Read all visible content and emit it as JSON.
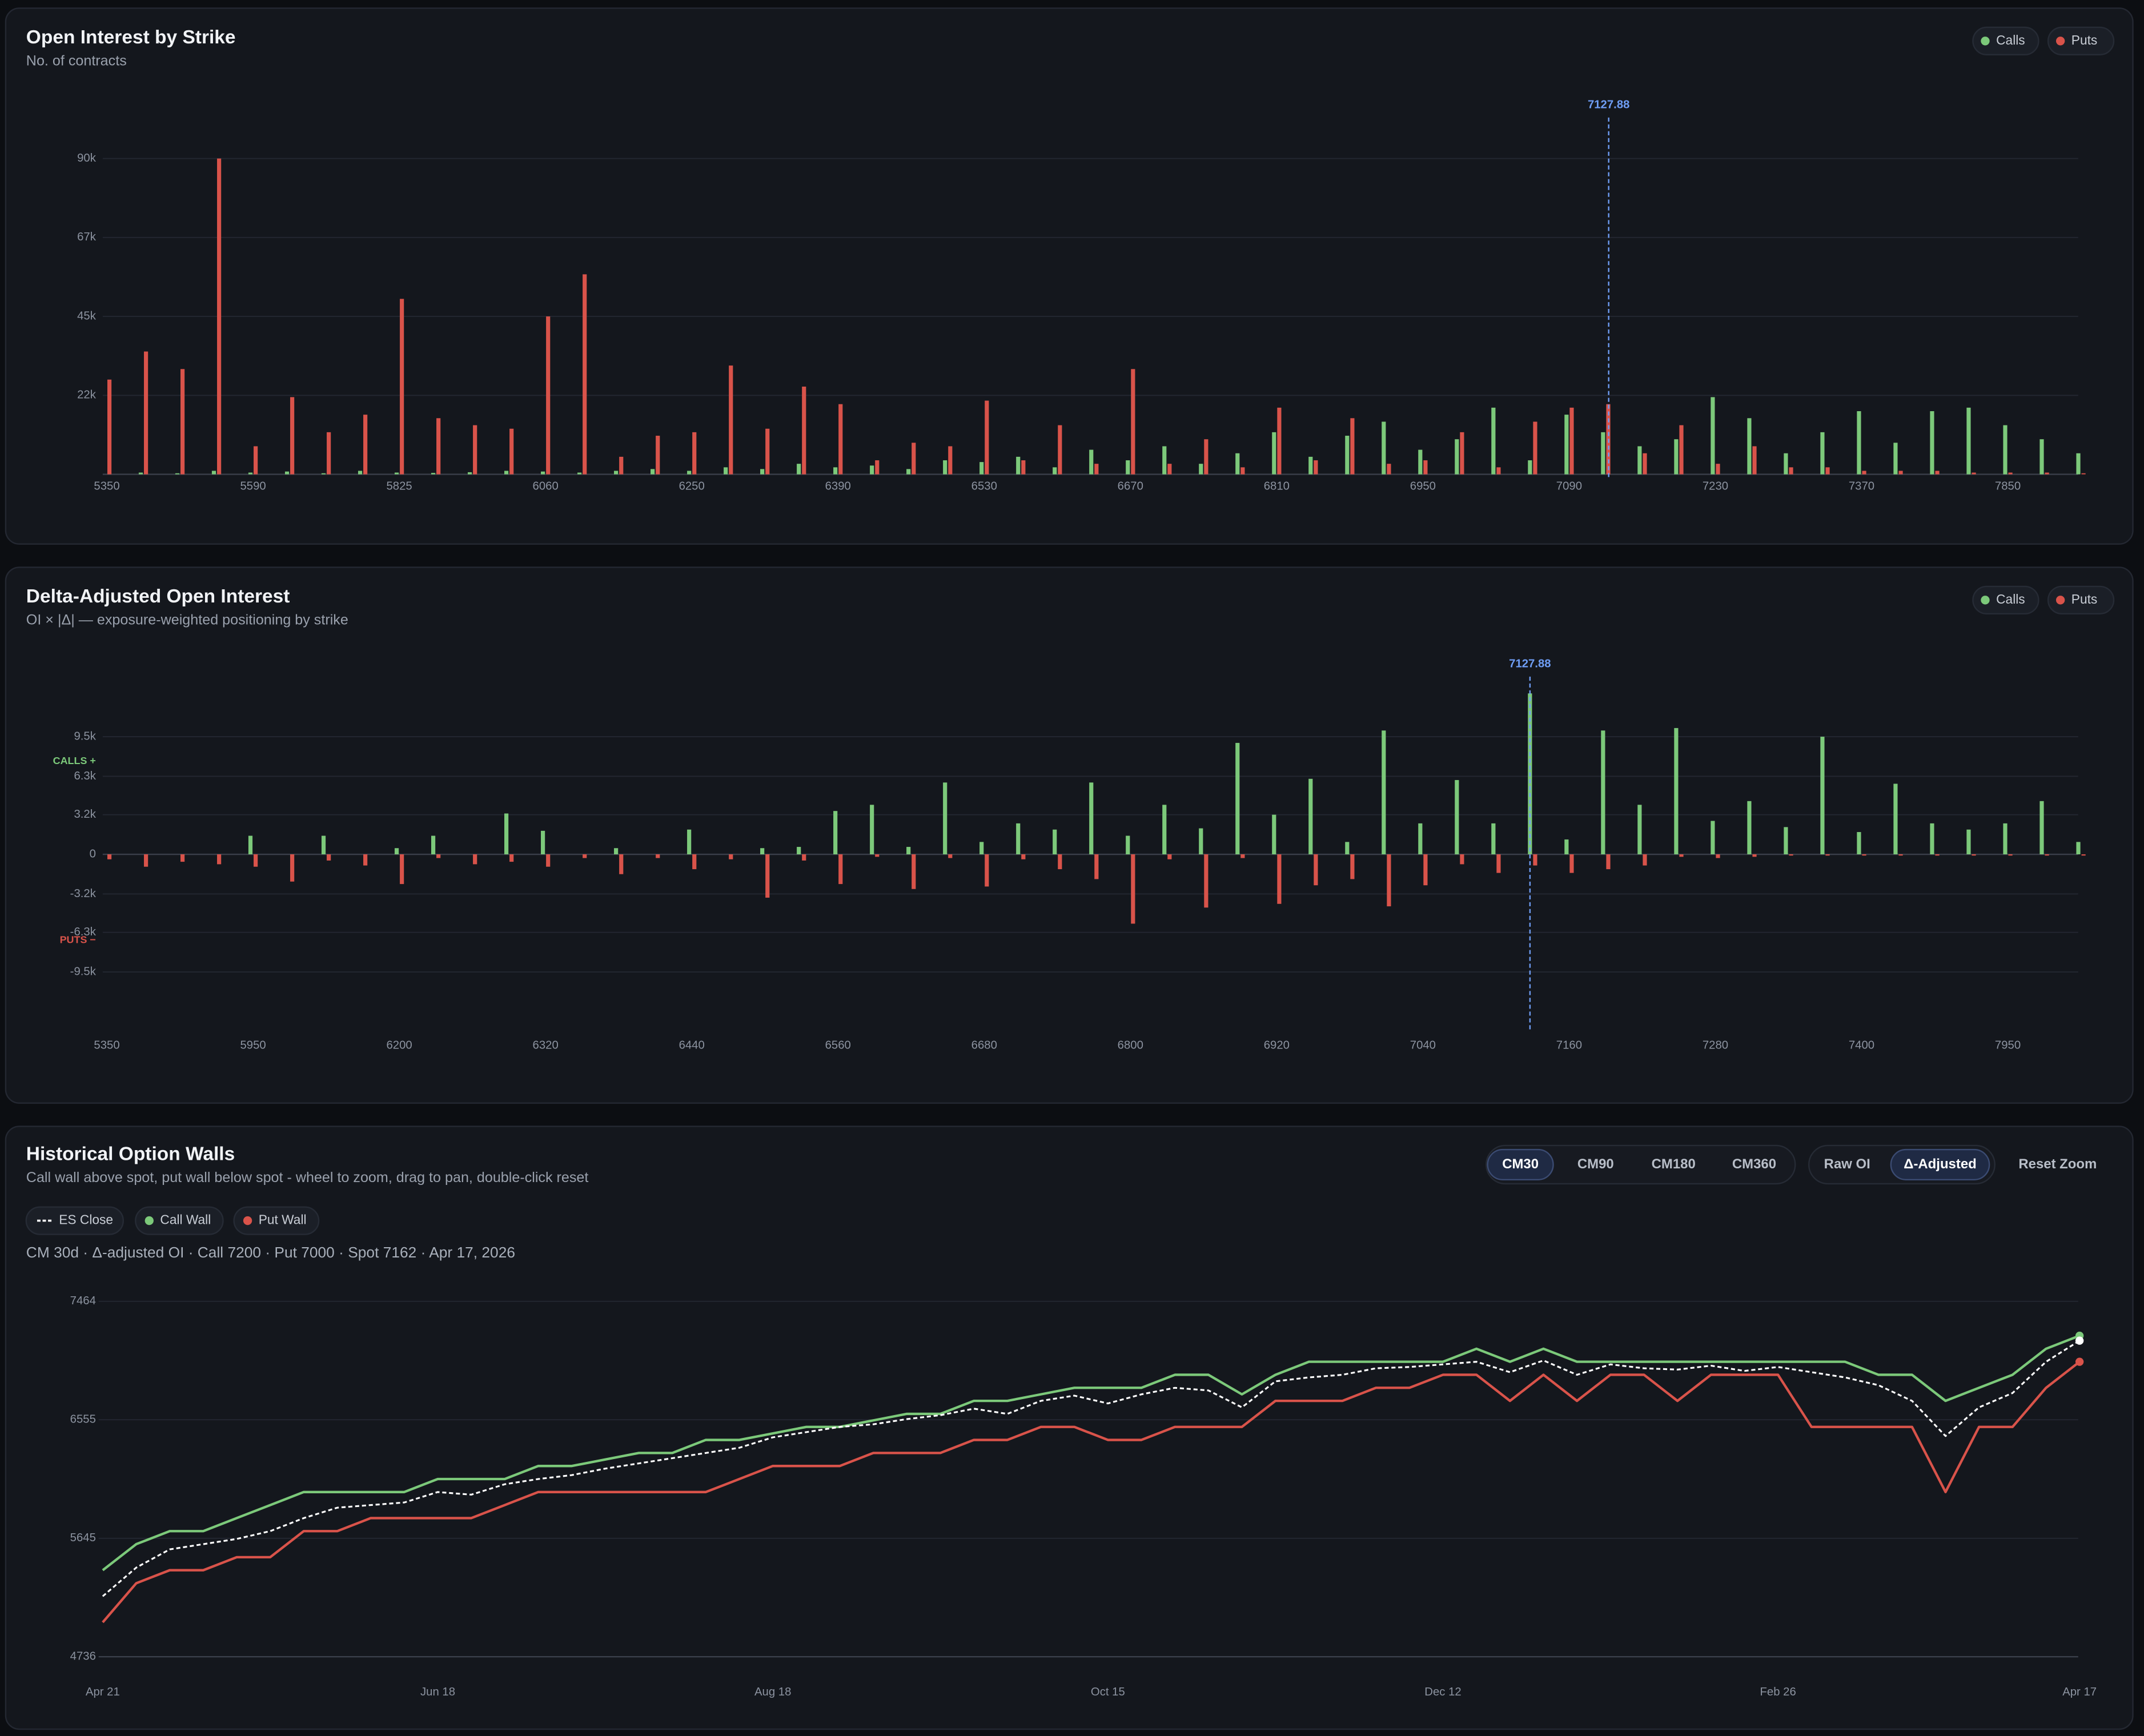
{
  "chart_data": [
    {
      "type": "bar",
      "title": "Open Interest by Strike",
      "subtitle": "No. of contracts",
      "categories": [
        5350,
        null,
        null,
        null,
        5590,
        null,
        null,
        null,
        5825,
        null,
        null,
        null,
        6060,
        null,
        null,
        null,
        6250,
        null,
        null,
        null,
        6390,
        null,
        null,
        null,
        6530,
        null,
        null,
        null,
        6670,
        null,
        null,
        null,
        6810,
        null,
        null,
        null,
        6950,
        null,
        null,
        null,
        7090,
        null,
        null,
        null,
        7230,
        null,
        null,
        null,
        7370,
        null,
        null,
        null,
        7850,
        null,
        null
      ],
      "series": [
        {
          "name": "Calls",
          "color": "#7cc97a",
          "values": [
            0,
            500,
            300,
            1000,
            500,
            800,
            300,
            1000,
            500,
            400,
            600,
            1000,
            800,
            500,
            1000,
            1500,
            1000,
            2000,
            1500,
            3000,
            2000,
            2500,
            1500,
            4000,
            3500,
            5000,
            2000,
            7000,
            4000,
            8000,
            3000,
            6000,
            12000,
            5000,
            11000,
            15000,
            7000,
            10000,
            19000,
            4000,
            17000,
            12000,
            8000,
            10000,
            22000,
            16000,
            6000,
            12000,
            18000,
            9000,
            18000,
            19000,
            14000,
            10000,
            6000
          ]
        },
        {
          "name": "Puts",
          "color": "#d9534a",
          "values": [
            27000,
            35000,
            30000,
            90000,
            8000,
            22000,
            12000,
            17000,
            50000,
            16000,
            14000,
            13000,
            45000,
            57000,
            5000,
            11000,
            12000,
            31000,
            13000,
            25000,
            20000,
            4000,
            9000,
            8000,
            21000,
            4000,
            14000,
            3000,
            30000,
            3000,
            10000,
            2000,
            19000,
            4000,
            16000,
            3000,
            4000,
            12000,
            2000,
            15000,
            19000,
            20000,
            6000,
            14000,
            3000,
            8000,
            2000,
            2000,
            1000,
            1000,
            1000,
            500,
            500,
            500,
            300
          ]
        }
      ],
      "ylim": [
        0,
        97000
      ],
      "yticks": [
        {
          "value": 22500,
          "label": "22k"
        },
        {
          "value": 45000,
          "label": "45k"
        },
        {
          "value": 67500,
          "label": "67k"
        },
        {
          "value": 90000,
          "label": "90k"
        }
      ],
      "spot": 7127.88,
      "spot_color": "#6f9ef5",
      "grid": true
    },
    {
      "type": "bar",
      "title": "Delta-Adjusted Open Interest",
      "subtitle": "OI × |Δ| — exposure-weighted positioning by strike",
      "categories": [
        5350,
        null,
        null,
        null,
        5950,
        null,
        null,
        null,
        6200,
        null,
        null,
        null,
        6320,
        null,
        null,
        null,
        6440,
        null,
        null,
        null,
        6560,
        null,
        null,
        null,
        6680,
        null,
        null,
        null,
        6800,
        null,
        null,
        null,
        6920,
        null,
        null,
        null,
        7040,
        null,
        null,
        null,
        7160,
        null,
        null,
        null,
        7280,
        null,
        null,
        null,
        7400,
        null,
        null,
        null,
        7950,
        null,
        null
      ],
      "series": [
        {
          "name": "Calls",
          "color": "#7cc97a",
          "values": [
            0,
            0,
            0,
            0,
            1500,
            0,
            1500,
            0,
            500,
            1500,
            0,
            3300,
            1900,
            0,
            500,
            0,
            2000,
            0,
            500,
            600,
            3500,
            4000,
            600,
            5800,
            1000,
            2500,
            2000,
            5800,
            1500,
            4000,
            2100,
            9000,
            3200,
            6100,
            1000,
            10000,
            2500,
            6000,
            2500,
            13000,
            1200,
            10000,
            4000,
            10200,
            2700,
            4300,
            2200,
            9500,
            1800,
            5700,
            2500,
            2000,
            2500,
            4300,
            1000
          ]
        },
        {
          "name": "Puts",
          "color": "#d9534a",
          "values": [
            -400,
            -1000,
            -600,
            -800,
            -1000,
            -2200,
            -500,
            -900,
            -2400,
            -300,
            -800,
            -600,
            -1000,
            -300,
            -1600,
            -300,
            -1200,
            -400,
            -3500,
            -500,
            -2400,
            -200,
            -2800,
            -300,
            -2600,
            -400,
            -1200,
            -2000,
            -5600,
            -400,
            -4300,
            -300,
            -4000,
            -2500,
            -2000,
            -4200,
            -2500,
            -800,
            -1500,
            -900,
            -1500,
            -1200,
            -900,
            -200,
            -300,
            -200,
            -100,
            -100,
            -100,
            -100,
            -100,
            -100,
            -100,
            -100,
            -100
          ]
        }
      ],
      "ylim": [
        -13800,
        13800
      ],
      "yticks": [
        {
          "value": 9500,
          "label": "9.5k"
        },
        {
          "value": 6300,
          "label": "6.3k"
        },
        {
          "value": 3200,
          "label": "3.2k"
        },
        0,
        {
          "value": -3200,
          "label": "-3.2k"
        },
        {
          "value": -6300,
          "label": "-6.3k"
        },
        {
          "value": -9500,
          "label": "-9.5k"
        }
      ],
      "positive_label": "CALLS +",
      "negative_label": "PUTS −",
      "spot": 7127.88,
      "spot_color": "#6f9ef5",
      "grid": true
    },
    {
      "type": "line",
      "title": "Historical Option Walls",
      "subtitle": "Call wall above spot, put wall below spot - wheel to zoom, drag to pan, double-click reset",
      "info": "CM 30d · Δ-adjusted OI · Call 7200 · Put 7000 · Spot 7162 · Apr 17, 2026",
      "categories": [
        "Apr 21",
        null,
        null,
        null,
        null,
        null,
        null,
        null,
        null,
        null,
        "Jun 18",
        null,
        null,
        null,
        null,
        null,
        null,
        null,
        null,
        null,
        "Aug 18",
        null,
        null,
        null,
        null,
        null,
        null,
        null,
        null,
        null,
        "Oct 15",
        null,
        null,
        null,
        null,
        null,
        null,
        null,
        null,
        null,
        "Dec 12",
        null,
        null,
        null,
        null,
        null,
        null,
        null,
        null,
        null,
        "Feb 26",
        null,
        null,
        null,
        null,
        null,
        null,
        null,
        null,
        "Apr 17"
      ],
      "series": [
        {
          "name": "ES Close",
          "color": "#ffffff",
          "style": "dashed",
          "values": [
            5200,
            5420,
            5560,
            5600,
            5640,
            5700,
            5800,
            5880,
            5900,
            5920,
            6000,
            5980,
            6060,
            6100,
            6130,
            6180,
            6220,
            6260,
            6300,
            6340,
            6420,
            6460,
            6500,
            6520,
            6560,
            6590,
            6640,
            6600,
            6700,
            6740,
            6680,
            6750,
            6800,
            6780,
            6650,
            6850,
            6880,
            6900,
            6950,
            6960,
            6980,
            7000,
            6920,
            7010,
            6900,
            6980,
            6950,
            6940,
            6970,
            6930,
            6960,
            6920,
            6880,
            6820,
            6700,
            6430,
            6650,
            6760,
            7000,
            7162
          ]
        },
        {
          "name": "Call Wall",
          "color": "#7cc97a",
          "style": "solid",
          "values": [
            5400,
            5600,
            5700,
            5700,
            5800,
            5900,
            6000,
            6000,
            6000,
            6000,
            6100,
            6100,
            6100,
            6200,
            6200,
            6250,
            6300,
            6300,
            6400,
            6400,
            6450,
            6500,
            6500,
            6550,
            6600,
            6600,
            6700,
            6700,
            6750,
            6800,
            6800,
            6800,
            6900,
            6900,
            6750,
            6900,
            7000,
            7000,
            7000,
            7000,
            7000,
            7100,
            7000,
            7100,
            7000,
            7000,
            7000,
            7000,
            7000,
            7000,
            7000,
            7000,
            7000,
            6900,
            6900,
            6700,
            6800,
            6900,
            7100,
            7200
          ]
        },
        {
          "name": "Put Wall",
          "color": "#d9534a",
          "style": "solid",
          "values": [
            5000,
            5300,
            5400,
            5400,
            5500,
            5500,
            5700,
            5700,
            5800,
            5800,
            5800,
            5800,
            5900,
            6000,
            6000,
            6000,
            6000,
            6000,
            6000,
            6100,
            6200,
            6200,
            6200,
            6300,
            6300,
            6300,
            6400,
            6400,
            6500,
            6500,
            6400,
            6400,
            6500,
            6500,
            6500,
            6700,
            6700,
            6700,
            6800,
            6800,
            6900,
            6900,
            6700,
            6900,
            6700,
            6900,
            6900,
            6700,
            6900,
            6900,
            6900,
            6500,
            6500,
            6500,
            6500,
            6000,
            6500,
            6500,
            6800,
            7000
          ]
        }
      ],
      "ylim": [
        4736,
        7464
      ],
      "yticks": [
        4736,
        5645,
        6555,
        7464
      ],
      "grid": true
    }
  ],
  "controls": {
    "ranges": [
      "CM30",
      "CM90",
      "CM180",
      "CM360"
    ],
    "active_range": 0,
    "modes": [
      "Raw OI",
      "Δ-Adjusted"
    ],
    "active_mode": 1,
    "reset": "Reset Zoom"
  }
}
